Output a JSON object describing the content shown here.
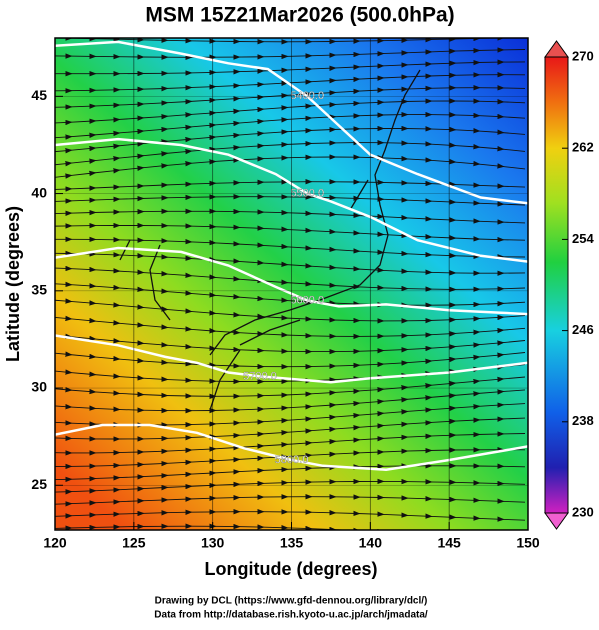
{
  "chart_data": {
    "type": "contour-map",
    "title": "MSM 15Z21Mar2026 (500.0hPa)",
    "x_label": "Longitude (degrees)",
    "y_label": "Latitude  (degrees)",
    "xlim": [
      120,
      150
    ],
    "ylim": [
      22.7,
      48
    ],
    "xticks": [
      120,
      125,
      130,
      135,
      140,
      145,
      150
    ],
    "yticks": [
      25,
      30,
      35,
      40,
      45
    ],
    "grid": true,
    "colorbar": {
      "lim": [
        230,
        270
      ],
      "ticks": [
        230,
        238,
        246,
        254,
        262,
        270
      ]
    },
    "contours": [
      {
        "value": 5400,
        "label": "5400.0",
        "points": [
          [
            120,
            47.6
          ],
          [
            124,
            47.8
          ],
          [
            128,
            47.2
          ],
          [
            131,
            46.7
          ],
          [
            133.5,
            46.4
          ],
          [
            136,
            45
          ],
          [
            138,
            43.5
          ],
          [
            140,
            42
          ],
          [
            143,
            41
          ],
          [
            147,
            39.8
          ],
          [
            150,
            39.5
          ]
        ]
      },
      {
        "value": 5500,
        "label": "5500.0",
        "points": [
          [
            120,
            42.5
          ],
          [
            124,
            42.8
          ],
          [
            128,
            42.5
          ],
          [
            131,
            42
          ],
          [
            134,
            41
          ],
          [
            136,
            40
          ],
          [
            137.5,
            39.6
          ],
          [
            140,
            38.8
          ],
          [
            143,
            37.6
          ],
          [
            147,
            36.8
          ],
          [
            150,
            36.5
          ]
        ]
      },
      {
        "value": 5600,
        "label": "5600.0",
        "points": [
          [
            120,
            36.7
          ],
          [
            124,
            37.2
          ],
          [
            128,
            37
          ],
          [
            131,
            36.3
          ],
          [
            134,
            35.2
          ],
          [
            136,
            34.5
          ],
          [
            138,
            34.2
          ],
          [
            141,
            34.3
          ],
          [
            145,
            34
          ],
          [
            150,
            33.8
          ]
        ]
      },
      {
        "value": 5700,
        "label": "5700.0",
        "points": [
          [
            120,
            32.7
          ],
          [
            124,
            32.2
          ],
          [
            127,
            31.6
          ],
          [
            129,
            31.3
          ],
          [
            131,
            30.8
          ],
          [
            133,
            30.6
          ],
          [
            137.5,
            30.3
          ],
          [
            140,
            30.5
          ],
          [
            145,
            30.8
          ],
          [
            150,
            31.3
          ]
        ]
      },
      {
        "value": 5800,
        "label": "5800.0",
        "points": [
          [
            120,
            27.6
          ],
          [
            123,
            28.1
          ],
          [
            126,
            28.1
          ],
          [
            129,
            27.7
          ],
          [
            132,
            26.9
          ],
          [
            135,
            26.3
          ],
          [
            137,
            26
          ],
          [
            141,
            25.8
          ],
          [
            145,
            26.3
          ],
          [
            150,
            27
          ]
        ]
      }
    ],
    "credits": [
      "Drawing by DCL (https://www.gfd-dennou.org/library/dcl/)",
      "Data from http://database.rish.kyoto-u.ac.jp/arch/jmadata/"
    ]
  }
}
